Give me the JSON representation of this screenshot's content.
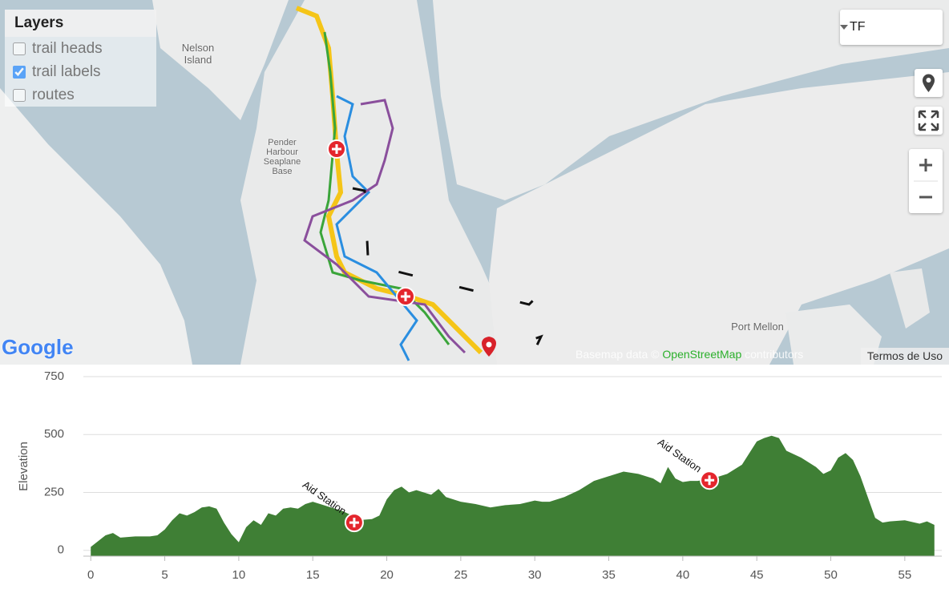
{
  "map": {
    "layers": {
      "title": "Layers",
      "items": [
        {
          "label": "trail heads",
          "checked": false
        },
        {
          "label": "trail labels",
          "checked": true
        },
        {
          "label": "routes",
          "checked": false
        }
      ]
    },
    "dropdown": "TF",
    "labels": [
      "Nelson Island",
      "Pender Harbour Seaplane Base",
      "Port Mellon"
    ],
    "logo": "Google",
    "attribution": {
      "prefix": "Basemap data ©",
      "link": "OpenStreetMap",
      "suffix": "contributors"
    },
    "terms": "Termos de Uso"
  },
  "chart_data": {
    "type": "area",
    "y_label": "Elevation",
    "color": "#3f7f35",
    "x": [
      0,
      0.5,
      1,
      1.5,
      2,
      3,
      4,
      4.5,
      5,
      5.5,
      6,
      6.5,
      7,
      7.5,
      8,
      8.5,
      9,
      9.5,
      10,
      10.5,
      11,
      11.5,
      12,
      12.5,
      13,
      13.5,
      14,
      14.5,
      15,
      15.5,
      16,
      17,
      17.5,
      18,
      19,
      19.5,
      20,
      20.5,
      21,
      21.5,
      22,
      23,
      23.5,
      24,
      25,
      26,
      27,
      28,
      29,
      30,
      30.5,
      31,
      32,
      33,
      34,
      35,
      36,
      37,
      38,
      38.5,
      39,
      39.5,
      40,
      40.5,
      41,
      42,
      43,
      44,
      45,
      45.5,
      46,
      46.5,
      47,
      48,
      49,
      49.5,
      50,
      50.5,
      51,
      51.5,
      52,
      52.5,
      53,
      53.5,
      54,
      55,
      56,
      56.5,
      57
    ],
    "values": [
      15,
      40,
      65,
      75,
      55,
      60,
      60,
      65,
      90,
      130,
      160,
      150,
      165,
      185,
      190,
      180,
      120,
      70,
      35,
      100,
      130,
      110,
      160,
      150,
      180,
      185,
      180,
      200,
      210,
      200,
      190,
      170,
      155,
      130,
      135,
      150,
      220,
      260,
      275,
      250,
      260,
      240,
      265,
      230,
      210,
      200,
      185,
      195,
      200,
      215,
      210,
      210,
      230,
      260,
      300,
      320,
      340,
      330,
      310,
      290,
      360,
      310,
      295,
      300,
      300,
      310,
      330,
      370,
      470,
      485,
      495,
      485,
      430,
      400,
      360,
      330,
      345,
      400,
      420,
      390,
      320,
      230,
      140,
      120,
      125,
      130,
      115,
      125,
      110
    ],
    "xlim": [
      -0.5,
      57.5
    ],
    "ylim": [
      -25,
      750
    ],
    "xticks": [
      0,
      5,
      10,
      15,
      20,
      25,
      30,
      35,
      40,
      45,
      50,
      55
    ],
    "yticks": [
      0,
      250,
      500,
      750
    ],
    "grid": true,
    "annotations": [
      {
        "text": "Aid Station",
        "x": 17.8,
        "y": 120
      },
      {
        "text": "Aid Station",
        "x": 41.8,
        "y": 303
      }
    ]
  }
}
